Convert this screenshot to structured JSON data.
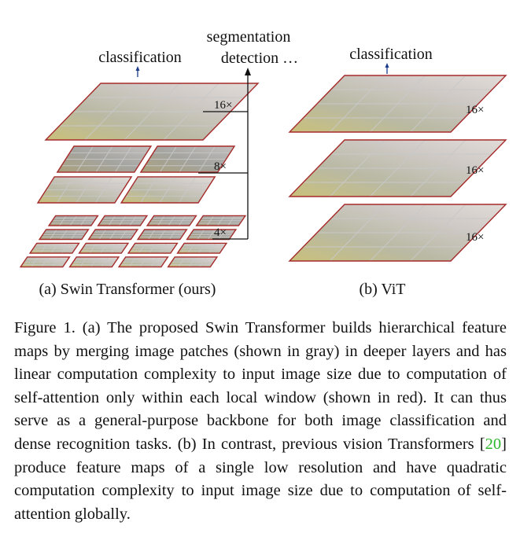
{
  "diagram": {
    "swin": {
      "top_label": "classification",
      "side_label_line1": "segmentation",
      "side_label_line2": "detection …",
      "stage_labels": [
        "16×",
        "8×",
        "4×"
      ],
      "panel_label": "(a) Swin Transformer (ours)"
    },
    "vit": {
      "top_label": "classification",
      "stage_labels": [
        "16×",
        "16×",
        "16×"
      ],
      "panel_label": "(b) ViT"
    },
    "colors": {
      "window_border": "#a52a2a",
      "patch_grid": "#c8c8c8",
      "arrow_blue": "#1a3a8a",
      "connector": "#111111"
    }
  },
  "caption": {
    "lead": "Figure 1. (a) The proposed Swin Transformer builds hierarchical feature maps by merging image patches (shown in gray) in deeper layers and has linear computation complexity to input image size due to computation of self-attention only within each local window (shown in red). It can thus serve as a general-purpose backbone for both image classification and dense recognition tasks. (b) In contrast, previous vision Transformers ",
    "ref_open": "[",
    "ref_num": "20",
    "ref_close": "]",
    "tail": " produce feature maps of a single low resolution and have quadratic computation complexity to input image size due to computation of self-attention globally."
  }
}
